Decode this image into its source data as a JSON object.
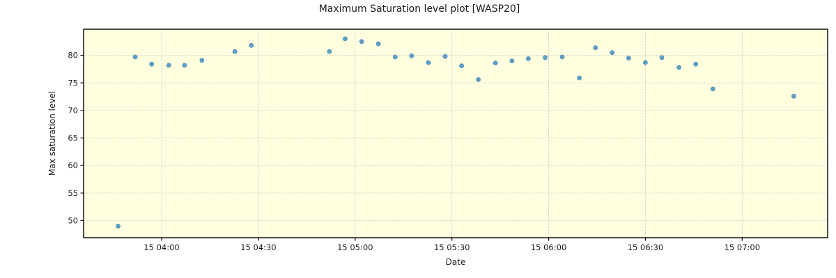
{
  "chart_data": {
    "type": "scatter",
    "title": "Maximum Saturation level plot [WASP20]",
    "xlabel": "Date",
    "ylabel": "Max saturation level",
    "plot_bg_color": "#fdfce4",
    "axes_bg_color": "#ffffe0",
    "marker_color": "#5d9fc6",
    "marker_edge_color": "#4e8ab2",
    "grid": true,
    "grid_color": "#cccccc",
    "spine_color": "#000000",
    "text_color": "#1a1a1a",
    "legend": "none",
    "xlim_minutes": [
      215.8,
      446.5
    ],
    "ylim": [
      46.9,
      84.75
    ],
    "x_ticks": [
      {
        "minutes": 240,
        "label": "15 04:00"
      },
      {
        "minutes": 270,
        "label": "15 04:30"
      },
      {
        "minutes": 300,
        "label": "15 05:00"
      },
      {
        "minutes": 330,
        "label": "15 05:30"
      },
      {
        "minutes": 360,
        "label": "15 06:00"
      },
      {
        "minutes": 390,
        "label": "15 06:30"
      },
      {
        "minutes": 420,
        "label": "15 07:00"
      }
    ],
    "y_ticks": [
      50,
      55,
      60,
      65,
      70,
      75,
      80
    ],
    "points": [
      {
        "t": "15 03:46",
        "m": 226.5,
        "v": 49.0
      },
      {
        "t": "15 03:52",
        "m": 231.8,
        "v": 79.7
      },
      {
        "t": "15 03:57",
        "m": 236.9,
        "v": 78.4
      },
      {
        "t": "15 04:02",
        "m": 242.2,
        "v": 78.2
      },
      {
        "t": "15 04:07",
        "m": 247.1,
        "v": 78.2
      },
      {
        "t": "15 04:12",
        "m": 252.5,
        "v": 79.1
      },
      {
        "t": "15 04:23",
        "m": 262.7,
        "v": 80.7
      },
      {
        "t": "15 04:28",
        "m": 267.8,
        "v": 81.8
      },
      {
        "t": "15 04:52",
        "m": 292.0,
        "v": 80.7
      },
      {
        "t": "15 04:57",
        "m": 296.9,
        "v": 83.0
      },
      {
        "t": "15 05:02",
        "m": 302.0,
        "v": 82.5
      },
      {
        "t": "15 05:07",
        "m": 307.2,
        "v": 82.1
      },
      {
        "t": "15 05:12",
        "m": 312.4,
        "v": 79.7
      },
      {
        "t": "15 05:18",
        "m": 317.5,
        "v": 79.9
      },
      {
        "t": "15 05:23",
        "m": 322.7,
        "v": 78.7
      },
      {
        "t": "15 05:28",
        "m": 327.9,
        "v": 79.8
      },
      {
        "t": "15 05:33",
        "m": 333.0,
        "v": 78.1
      },
      {
        "t": "15 05:38",
        "m": 338.2,
        "v": 75.6
      },
      {
        "t": "15 05:44",
        "m": 343.5,
        "v": 78.6
      },
      {
        "t": "15 05:49",
        "m": 348.6,
        "v": 79.0
      },
      {
        "t": "15 05:54",
        "m": 353.7,
        "v": 79.4
      },
      {
        "t": "15 05:59",
        "m": 358.9,
        "v": 79.6
      },
      {
        "t": "15 06:04",
        "m": 364.2,
        "v": 79.7
      },
      {
        "t": "15 06:10",
        "m": 369.5,
        "v": 75.9
      },
      {
        "t": "15 06:15",
        "m": 374.5,
        "v": 81.4
      },
      {
        "t": "15 06:20",
        "m": 379.7,
        "v": 80.5
      },
      {
        "t": "15 06:25",
        "m": 384.8,
        "v": 79.5
      },
      {
        "t": "15 06:30",
        "m": 390.0,
        "v": 78.7
      },
      {
        "t": "15 06:35",
        "m": 395.1,
        "v": 79.6
      },
      {
        "t": "15 06:40",
        "m": 400.4,
        "v": 77.8
      },
      {
        "t": "15 06:46",
        "m": 405.6,
        "v": 78.4
      },
      {
        "t": "15 06:51",
        "m": 410.9,
        "v": 73.9
      },
      {
        "t": "15 07:16",
        "m": 436.0,
        "v": 72.6
      }
    ]
  }
}
